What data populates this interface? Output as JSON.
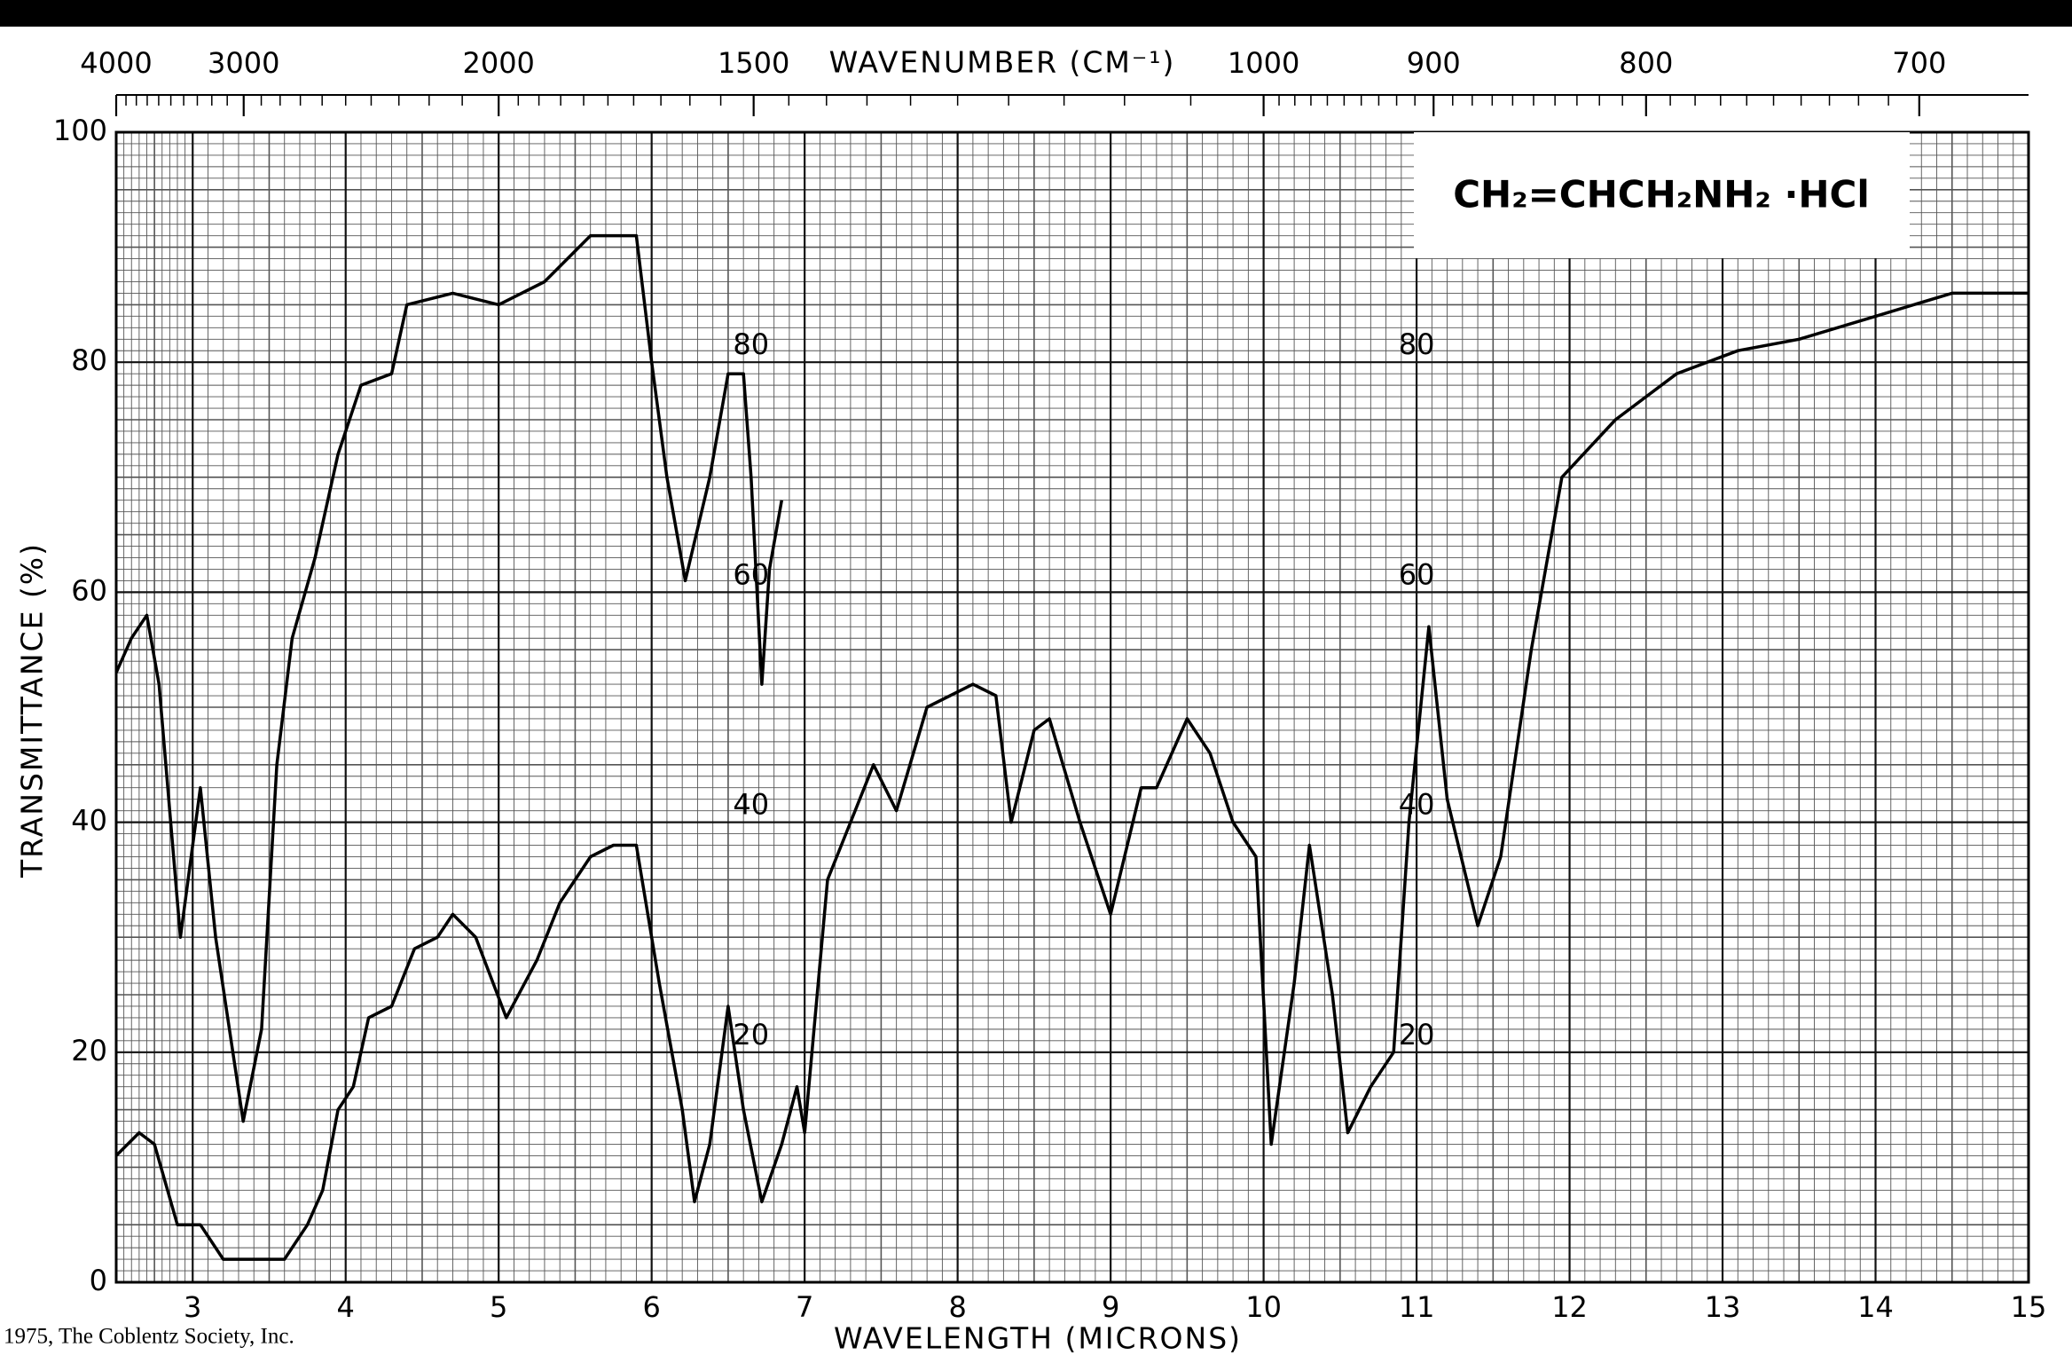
{
  "chart_data": {
    "type": "line",
    "formula": "CH₂=CHCH₂NH₂ ·HCl",
    "xlabel": "WAVELENGTH (MICRONS)",
    "ylabel": "TRANSMITTANCE (%)",
    "x2label": "WAVENUMBER (CM⁻¹)",
    "copyright": "1975, The Coblentz Society, Inc.",
    "inner_scale_labels": [
      "80",
      "60",
      "40",
      "20"
    ],
    "xlim": [
      2.5,
      15
    ],
    "xticks": [
      3,
      4,
      5,
      6,
      7,
      8,
      9,
      10,
      11,
      12,
      13,
      14,
      15
    ],
    "x2ticks": [
      4000,
      3000,
      2000,
      1500,
      1000,
      900,
      800,
      700
    ],
    "ylim": [
      0,
      100
    ],
    "yticks": [
      0,
      20,
      40,
      60,
      80,
      100
    ],
    "grid": true,
    "series": [
      {
        "color": "#000000",
        "x": [
          2.5,
          2.6,
          2.7,
          2.78,
          2.92,
          3.05,
          3.15,
          3.33,
          3.45,
          3.55,
          3.65,
          3.8,
          3.95,
          4.1,
          4.3,
          4.4,
          4.7,
          5.0,
          5.3,
          5.6,
          5.9,
          6.0,
          6.1,
          6.22,
          6.38,
          6.5,
          6.6,
          6.65,
          6.72,
          6.77,
          6.85
        ],
        "values": [
          53,
          56,
          58,
          52,
          30,
          43,
          30,
          14,
          22,
          45,
          56,
          63,
          72,
          78,
          79,
          85,
          86,
          85,
          87,
          91,
          91,
          80,
          70,
          61,
          70,
          79,
          79,
          70,
          52,
          62,
          68
        ]
      },
      {
        "color": "#000000",
        "x": [
          2.5,
          2.65,
          2.75,
          2.9,
          3.05,
          3.2,
          3.6,
          3.75,
          3.85,
          3.95,
          4.05,
          4.15,
          4.3,
          4.45,
          4.6,
          4.7,
          4.85,
          5.05,
          5.25,
          5.4,
          5.6,
          5.75,
          5.9,
          6.05,
          6.2,
          6.28,
          6.38,
          6.5,
          6.6,
          6.72,
          6.85,
          6.95,
          7.0,
          7.15,
          7.3,
          7.45,
          7.6,
          7.8,
          8.1,
          8.25,
          8.35,
          8.5,
          8.6,
          8.8,
          9.0,
          9.2,
          9.3,
          9.5,
          9.65,
          9.8,
          9.95,
          10.05,
          10.2,
          10.3,
          10.45,
          10.55,
          10.7,
          10.85,
          10.95,
          11.08,
          11.2,
          11.4,
          11.55,
          11.75,
          11.95,
          12.3,
          12.7,
          13.1,
          13.5,
          14.0,
          14.5,
          15.0
        ],
        "values": [
          11,
          13,
          12,
          5,
          5,
          2,
          2,
          5,
          8,
          15,
          17,
          23,
          24,
          29,
          30,
          32,
          30,
          23,
          28,
          33,
          37,
          38,
          38,
          26,
          15,
          7,
          12,
          24,
          15,
          7,
          12,
          17,
          13,
          35,
          40,
          45,
          41,
          50,
          52,
          51,
          40,
          48,
          49,
          40,
          32,
          43,
          43,
          49,
          46,
          40,
          37,
          12,
          26,
          38,
          25,
          13,
          17,
          20,
          40,
          57,
          42,
          31,
          37,
          55,
          70,
          75,
          79,
          81,
          82,
          84,
          86,
          86
        ]
      }
    ]
  }
}
